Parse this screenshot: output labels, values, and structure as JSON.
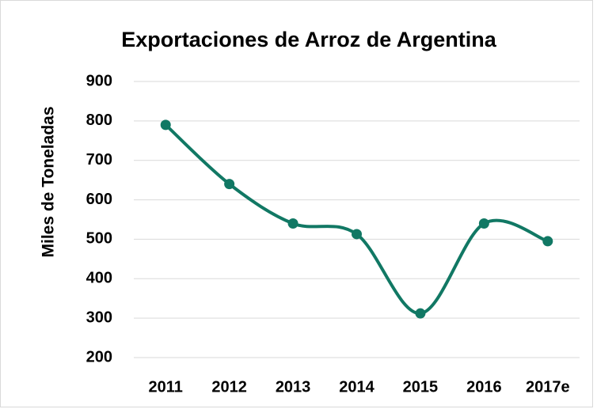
{
  "chart_data": {
    "type": "line",
    "title": "Exportaciones de Arroz de Argentina",
    "y_label": "Miles de Toneladas",
    "categories": [
      "2011",
      "2012",
      "2013",
      "2014",
      "2015",
      "2016",
      "2017e"
    ],
    "series": [
      {
        "name": "Exportaciones",
        "color": "#117864",
        "values": [
          790,
          640,
          540,
          513,
          312,
          540,
          495
        ]
      }
    ],
    "ylim": [
      200,
      900
    ],
    "yticks": [
      200,
      300,
      400,
      500,
      600,
      700,
      800,
      900
    ],
    "grid": true,
    "smooth": true
  }
}
